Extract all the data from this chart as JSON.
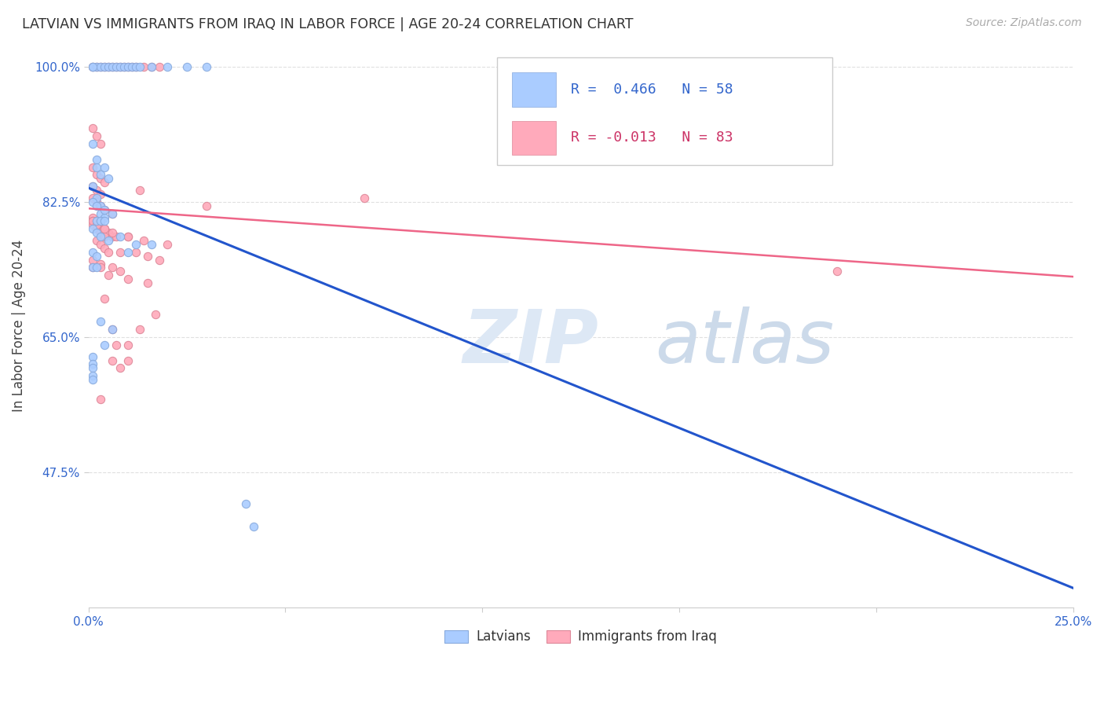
{
  "title": "LATVIAN VS IMMIGRANTS FROM IRAQ IN LABOR FORCE | AGE 20-24 CORRELATION CHART",
  "source": "Source: ZipAtlas.com",
  "ylabel": "In Labor Force | Age 20-24",
  "xlim": [
    0.0,
    0.25
  ],
  "ylim": [
    0.3,
    1.03
  ],
  "xticks": [
    0.0,
    0.05,
    0.1,
    0.15,
    0.2,
    0.25
  ],
  "xticklabels": [
    "0.0%",
    "",
    "",
    "",
    "",
    "25.0%"
  ],
  "yticks": [
    0.475,
    0.65,
    0.825,
    1.0
  ],
  "yticklabels": [
    "47.5%",
    "65.0%",
    "82.5%",
    "100.0%"
  ],
  "background_color": "#ffffff",
  "grid_color": "#e0e0e0",
  "latvian_color": "#aaccff",
  "iraq_color": "#ffaabb",
  "latvian_R": 0.466,
  "latvian_N": 58,
  "iraq_R": -0.013,
  "iraq_N": 83,
  "latvian_line_color": "#2255cc",
  "iraq_line_color": "#ee6688",
  "legend_label_latvian": "Latvians",
  "legend_label_iraq": "Immigrants from Iraq",
  "latvian_x": [
    0.001,
    0.002,
    0.003,
    0.004,
    0.005,
    0.006,
    0.007,
    0.008,
    0.009,
    0.01,
    0.011,
    0.012,
    0.013,
    0.016,
    0.02,
    0.025,
    0.03,
    0.001,
    0.001,
    0.002,
    0.002,
    0.003,
    0.004,
    0.005,
    0.001,
    0.002,
    0.003,
    0.003,
    0.004,
    0.001,
    0.002,
    0.004,
    0.006,
    0.002,
    0.003,
    0.004,
    0.001,
    0.002,
    0.003,
    0.005,
    0.001,
    0.002,
    0.008,
    0.012,
    0.001,
    0.002,
    0.01,
    0.016,
    0.003,
    0.006,
    0.004,
    0.001,
    0.001,
    0.001,
    0.001,
    0.001,
    0.04,
    0.042
  ],
  "latvian_y": [
    1.0,
    1.0,
    1.0,
    1.0,
    1.0,
    1.0,
    1.0,
    1.0,
    1.0,
    1.0,
    1.0,
    1.0,
    1.0,
    1.0,
    1.0,
    1.0,
    1.0,
    1.0,
    0.9,
    0.88,
    0.87,
    0.86,
    0.87,
    0.855,
    0.845,
    0.83,
    0.82,
    0.81,
    0.805,
    0.825,
    0.82,
    0.815,
    0.81,
    0.8,
    0.8,
    0.8,
    0.79,
    0.785,
    0.78,
    0.775,
    0.76,
    0.755,
    0.78,
    0.77,
    0.74,
    0.74,
    0.76,
    0.77,
    0.67,
    0.66,
    0.64,
    0.625,
    0.615,
    0.61,
    0.6,
    0.595,
    0.435,
    0.405
  ],
  "iraq_x": [
    0.001,
    0.002,
    0.003,
    0.004,
    0.005,
    0.006,
    0.007,
    0.008,
    0.009,
    0.01,
    0.011,
    0.012,
    0.014,
    0.016,
    0.018,
    0.001,
    0.002,
    0.003,
    0.001,
    0.002,
    0.003,
    0.004,
    0.001,
    0.002,
    0.003,
    0.001,
    0.002,
    0.003,
    0.004,
    0.006,
    0.001,
    0.002,
    0.003,
    0.004,
    0.005,
    0.006,
    0.002,
    0.003,
    0.004,
    0.001,
    0.002,
    0.003,
    0.001,
    0.002,
    0.003,
    0.004,
    0.007,
    0.01,
    0.005,
    0.008,
    0.012,
    0.015,
    0.018,
    0.001,
    0.002,
    0.004,
    0.006,
    0.01,
    0.014,
    0.02,
    0.001,
    0.003,
    0.001,
    0.003,
    0.006,
    0.008,
    0.005,
    0.01,
    0.015,
    0.006,
    0.013,
    0.007,
    0.01,
    0.017,
    0.006,
    0.01,
    0.004,
    0.008,
    0.19,
    0.003,
    0.03,
    0.013,
    0.07
  ],
  "iraq_y": [
    1.0,
    1.0,
    1.0,
    1.0,
    1.0,
    1.0,
    1.0,
    1.0,
    1.0,
    1.0,
    1.0,
    1.0,
    1.0,
    1.0,
    1.0,
    0.92,
    0.91,
    0.9,
    0.87,
    0.86,
    0.855,
    0.85,
    0.845,
    0.84,
    0.835,
    0.83,
    0.825,
    0.82,
    0.815,
    0.81,
    0.805,
    0.8,
    0.795,
    0.79,
    0.785,
    0.78,
    0.775,
    0.77,
    0.765,
    0.8,
    0.8,
    0.8,
    0.795,
    0.79,
    0.785,
    0.78,
    0.78,
    0.78,
    0.76,
    0.76,
    0.76,
    0.755,
    0.75,
    0.8,
    0.795,
    0.79,
    0.785,
    0.78,
    0.775,
    0.77,
    0.75,
    0.745,
    0.74,
    0.74,
    0.74,
    0.735,
    0.73,
    0.725,
    0.72,
    0.66,
    0.66,
    0.64,
    0.64,
    0.68,
    0.62,
    0.62,
    0.7,
    0.61,
    0.735,
    0.57,
    0.82,
    0.84,
    0.83
  ]
}
